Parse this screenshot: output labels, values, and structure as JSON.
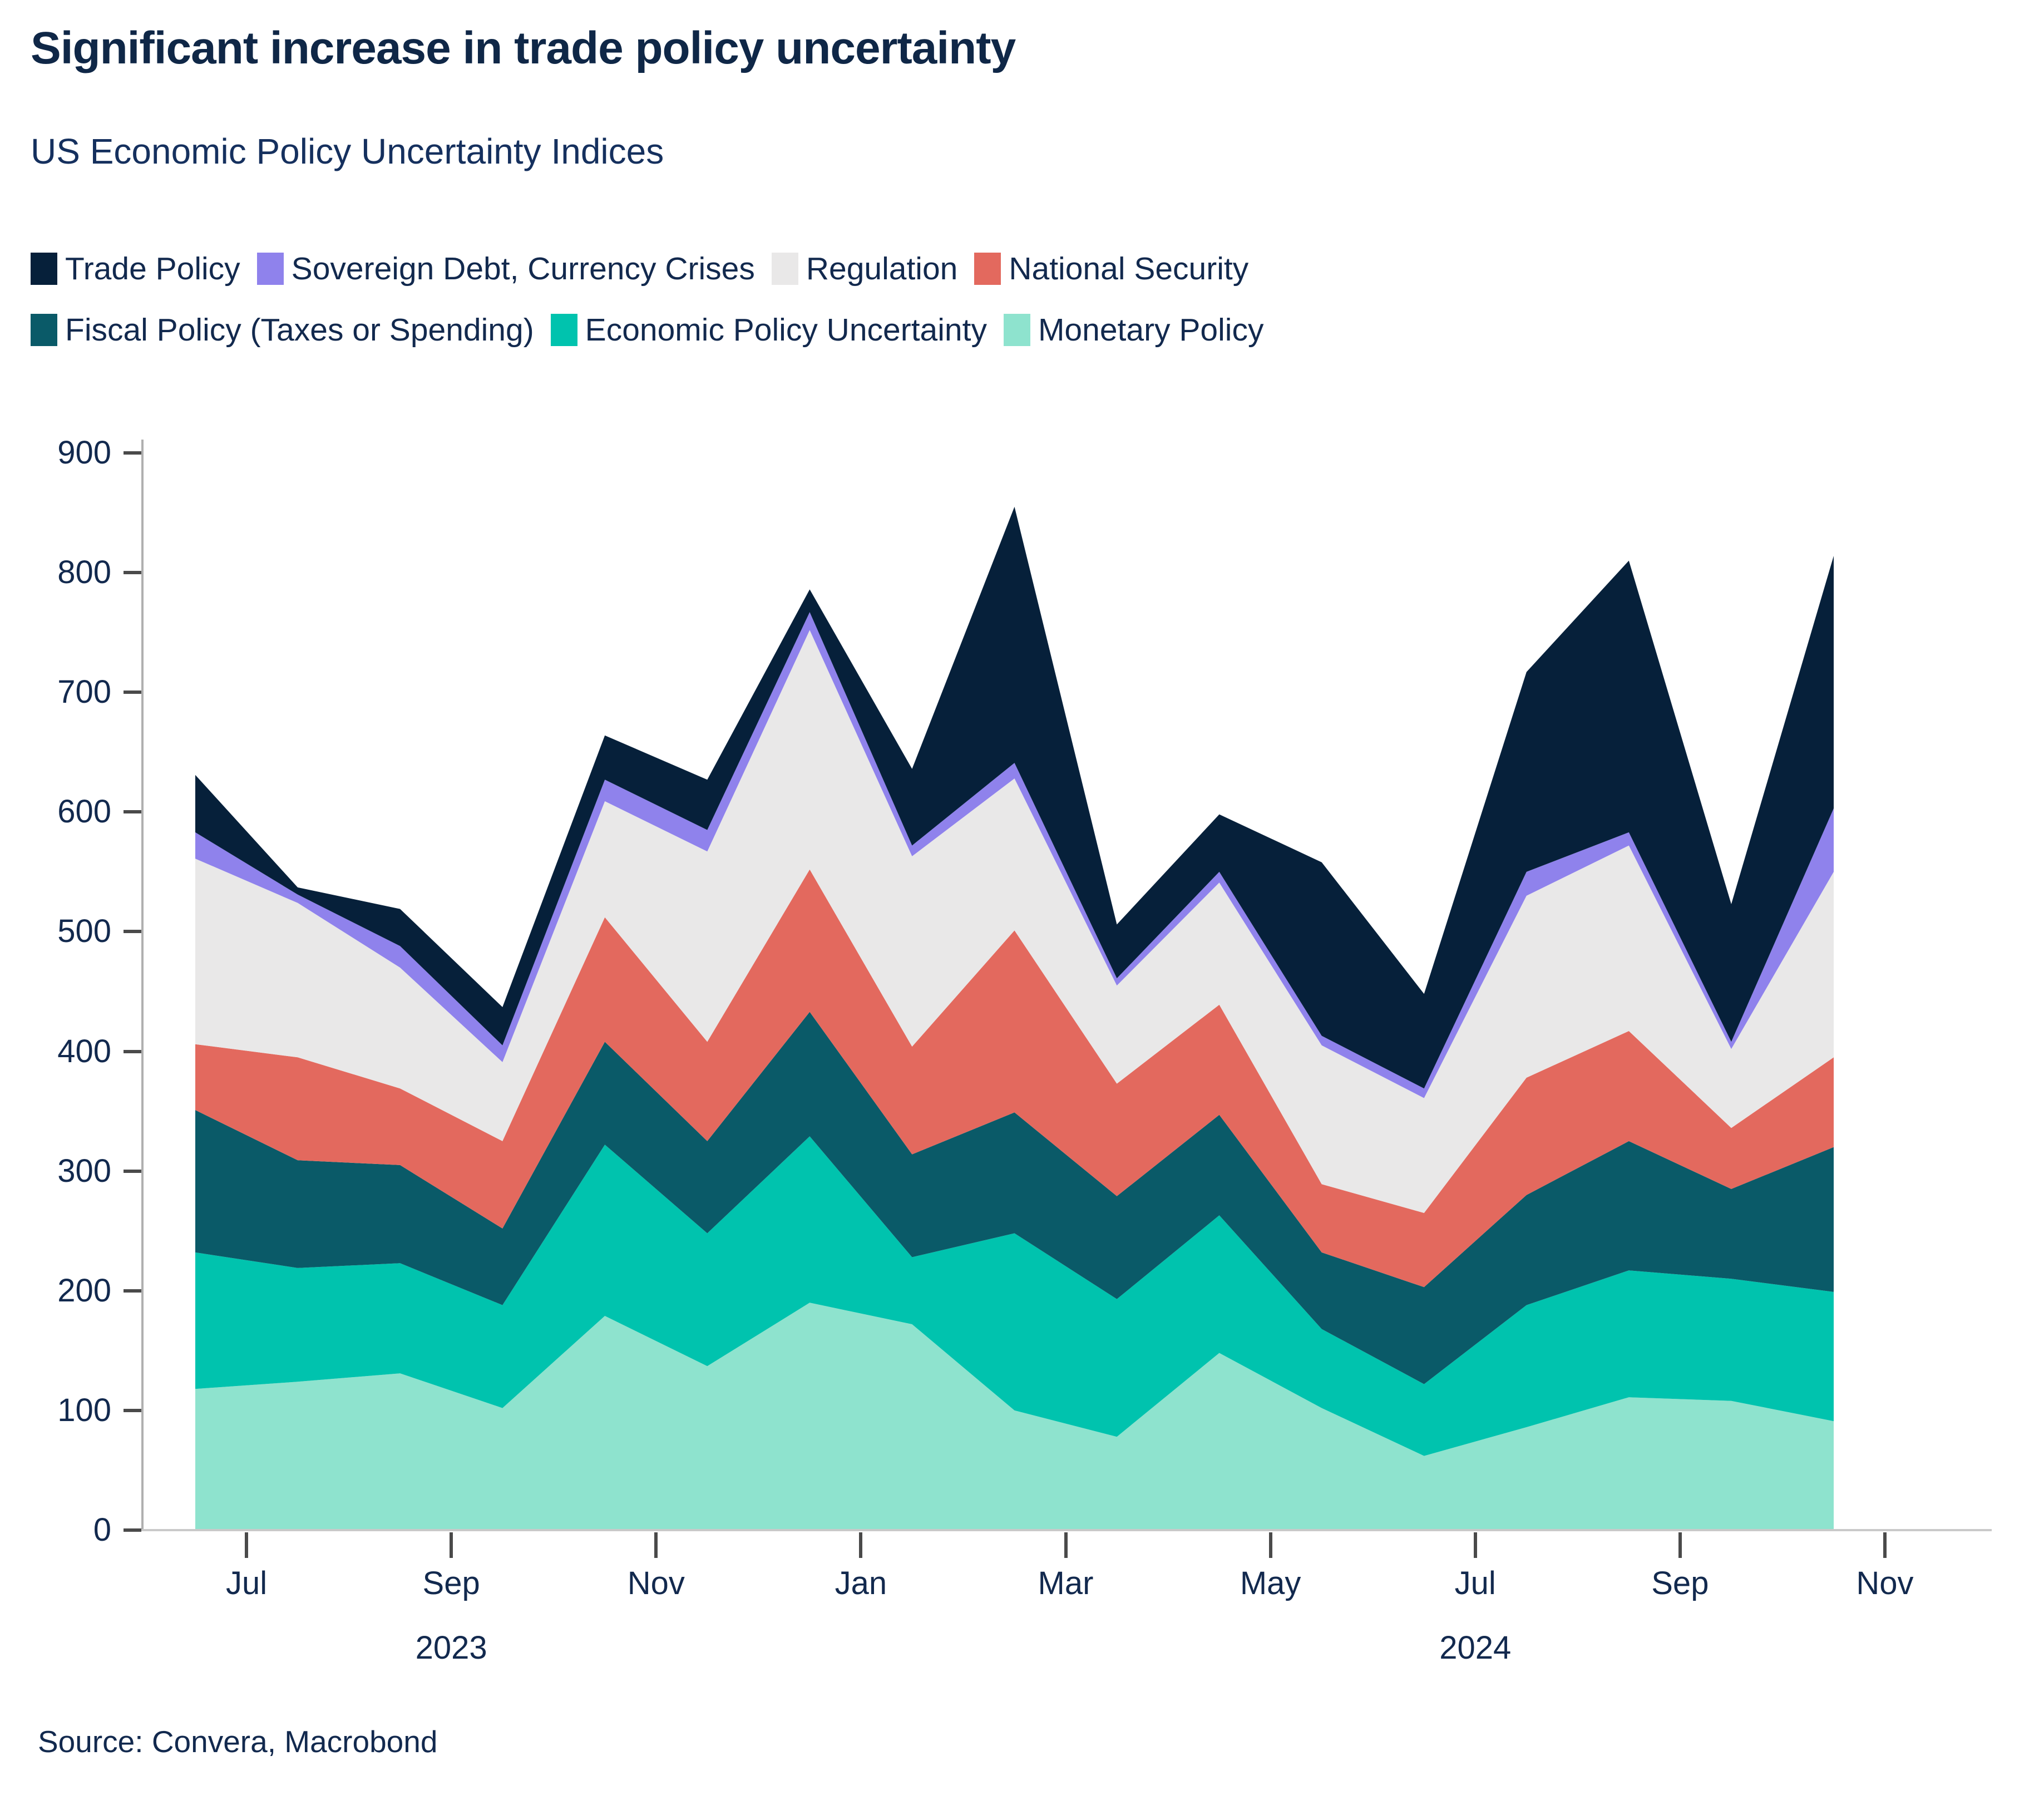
{
  "title": "Significant increase in trade policy uncertainty",
  "subtitle": "US Economic Policy Uncertainty Indices",
  "source": "Source: Convera, Macrobond",
  "colors": {
    "trade_policy": "#06203A",
    "sovereign_debt": "#8F82EC",
    "regulation": "#E9E8E8",
    "national_security": "#E3695E",
    "fiscal_policy": "#0A5A68",
    "economic_policy_uncertainty": "#00C3AE",
    "monetary_policy": "#8EE3CE",
    "text_navy": "#12294E",
    "axis_line": "#C9C9C9",
    "tick": "#4a4a4a"
  },
  "legend": {
    "rows": [
      [
        {
          "label": "Trade Policy",
          "color": "#06203A"
        },
        {
          "label": "Sovereign Debt, Currency Crises",
          "color": "#8F82EC"
        },
        {
          "label": "Regulation",
          "color": "#E9E8E8"
        },
        {
          "label": "National Security",
          "color": "#E3695E"
        }
      ],
      [
        {
          "label": "Fiscal Policy (Taxes or Spending)",
          "color": "#0A5A68"
        },
        {
          "label": "Economic Policy Uncertainty",
          "color": "#00C3AE"
        },
        {
          "label": "Monetary Policy",
          "color": "#8EE3CE"
        }
      ]
    ]
  },
  "chart_data": {
    "type": "area",
    "stacked": true,
    "title": "US Economic Policy Uncertainty Indices",
    "xlabel": "",
    "ylabel": "",
    "ylim": [
      0,
      900
    ],
    "grid": false,
    "legend_position": "top",
    "x": [
      "Jun 2023",
      "Jul 2023",
      "Aug 2023",
      "Sep 2023",
      "Oct 2023",
      "Nov 2023",
      "Dec 2023",
      "Jan 2024",
      "Feb 2024",
      "Mar 2024",
      "Apr 2024",
      "May 2024",
      "Jun 2024",
      "Jul 2024",
      "Aug 2024",
      "Sep 2024",
      "Oct 2024"
    ],
    "series": [
      {
        "name": "Monetary Policy",
        "color": "#8EE3CE",
        "values": [
          118,
          124,
          131,
          102,
          179,
          137,
          190,
          172,
          100,
          78,
          148,
          102,
          62,
          86,
          111,
          108,
          91
        ]
      },
      {
        "name": "Economic Policy Uncertainty",
        "color": "#00C3AE",
        "values": [
          114,
          95,
          92,
          86,
          143,
          111,
          139,
          56,
          148,
          115,
          115,
          66,
          60,
          102,
          106,
          102,
          108
        ]
      },
      {
        "name": "Fiscal Policy (Taxes or Spending)",
        "color": "#0A5A68",
        "values": [
          119,
          90,
          82,
          64,
          86,
          77,
          104,
          86,
          101,
          86,
          84,
          64,
          81,
          92,
          108,
          75,
          121
        ]
      },
      {
        "name": "National Security",
        "color": "#E3695E",
        "values": [
          55,
          86,
          64,
          73,
          104,
          83,
          119,
          90,
          152,
          94,
          92,
          57,
          62,
          98,
          92,
          51,
          75
        ]
      },
      {
        "name": "Regulation",
        "color": "#E9E8E8",
        "values": [
          155,
          129,
          101,
          66,
          97,
          159,
          200,
          159,
          127,
          82,
          102,
          116,
          96,
          152,
          155,
          66,
          155
        ]
      },
      {
        "name": "Sovereign Debt, Currency Crises",
        "color": "#8F82EC",
        "values": [
          22,
          7,
          18,
          14,
          18,
          18,
          15,
          9,
          13,
          6,
          9,
          8,
          8,
          20,
          11,
          6,
          53
        ]
      },
      {
        "name": "Trade Policy",
        "color": "#06203A",
        "values": [
          48,
          6,
          31,
          32,
          37,
          42,
          19,
          64,
          214,
          45,
          48,
          145,
          79,
          167,
          227,
          115,
          211
        ]
      }
    ],
    "stacked_totals": [
      631,
      537,
      519,
      437,
      664,
      627,
      786,
      636,
      855,
      506,
      598,
      558,
      448,
      717,
      810,
      523,
      814
    ],
    "y_ticks": [
      0,
      100,
      200,
      300,
      400,
      500,
      600,
      700,
      800,
      900
    ],
    "x_ticks": [
      {
        "label": "Jul",
        "month_index": 1
      },
      {
        "label": "Sep",
        "month_index": 3
      },
      {
        "label": "Nov",
        "month_index": 5
      },
      {
        "label": "Jan",
        "month_index": 7
      },
      {
        "label": "Mar",
        "month_index": 9
      },
      {
        "label": "May",
        "month_index": 11
      },
      {
        "label": "Jul",
        "month_index": 13
      },
      {
        "label": "Sep",
        "month_index": 15
      },
      {
        "label": "Nov",
        "month_index": 17
      }
    ],
    "year_labels": [
      {
        "text": "2023",
        "month_index": 3
      },
      {
        "text": "2024",
        "month_index": 13
      }
    ]
  }
}
